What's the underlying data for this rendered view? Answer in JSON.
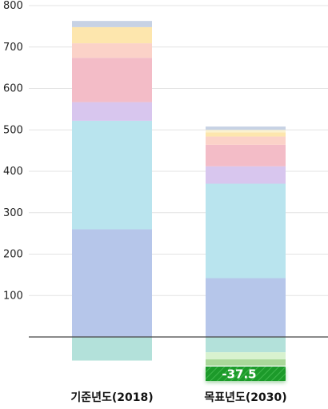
{
  "chart_data": {
    "type": "bar",
    "stacked": true,
    "categories": [
      "기준년도(2018)",
      "목표년도(2030)"
    ],
    "ylim": [
      -60,
      800
    ],
    "yticks": [
      100,
      200,
      300,
      400,
      500,
      600,
      700,
      800
    ],
    "grid": true,
    "legend": "none",
    "series": [
      {
        "color": "#b6c6ea",
        "values": [
          260,
          142
        ]
      },
      {
        "color": "#b9e4ee",
        "values": [
          262,
          228
        ]
      },
      {
        "color": "#d8c6ee",
        "values": [
          45,
          42
        ]
      },
      {
        "color": "#f3bcc7",
        "values": [
          107,
          52
        ]
      },
      {
        "color": "#fbd2c8",
        "values": [
          35,
          20
        ]
      },
      {
        "color": "#fde6ad",
        "values": [
          39,
          10
        ]
      },
      {
        "color": "#fbf2cf",
        "values": [
          0,
          6
        ]
      },
      {
        "color": "#c7d2e4",
        "values": [
          15,
          8
        ]
      }
    ],
    "negative_series": [
      {
        "color": "#b3e1da",
        "values": [
          -57,
          -37
        ]
      },
      {
        "color": "#d8f2cf",
        "values": [
          0,
          -17
        ]
      },
      {
        "color": "#aad89a",
        "values": [
          0,
          -15
        ]
      }
    ],
    "annotation": {
      "category": "목표년도(2030)",
      "label": "-37.5",
      "color": "#1f9a2c"
    }
  }
}
